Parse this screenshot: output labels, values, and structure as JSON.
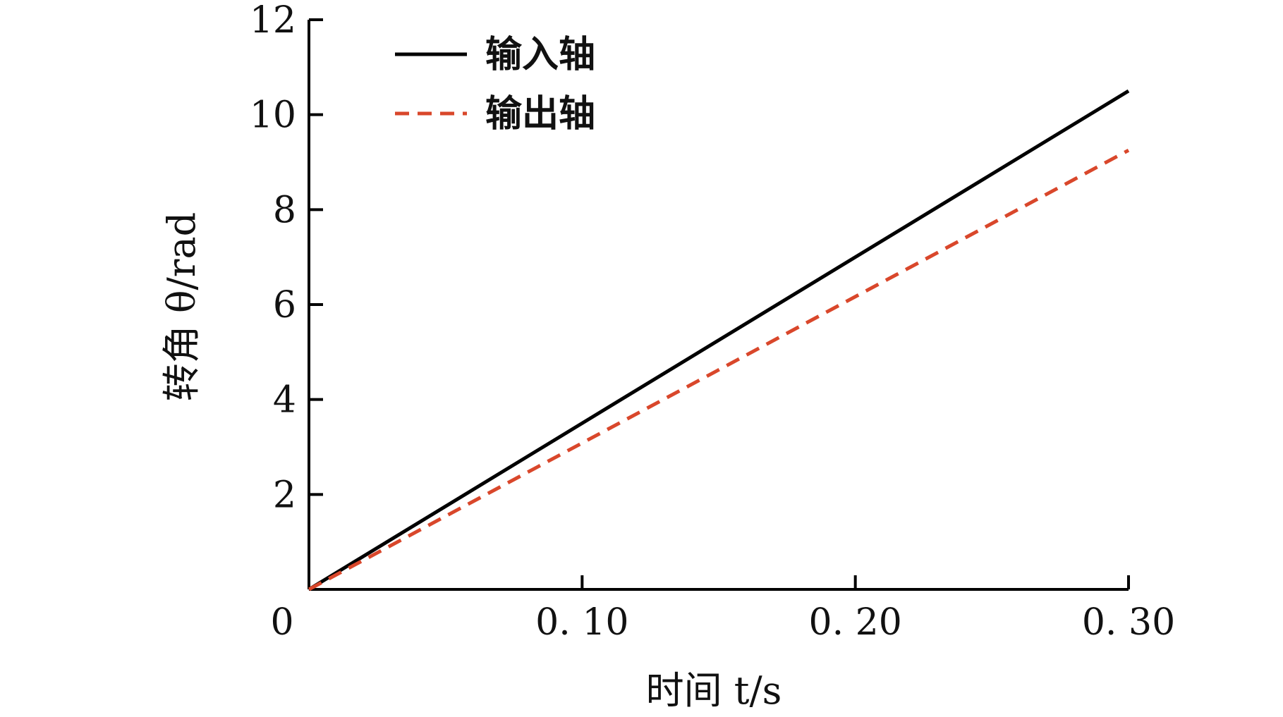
{
  "chart_data": {
    "type": "line",
    "xlabel": "时间 t/s",
    "ylabel": "转角 θ/rad",
    "xlim": [
      0,
      0.3
    ],
    "ylim": [
      0,
      12
    ],
    "x_ticks": [
      0,
      0.1,
      0.2,
      0.3
    ],
    "x_tick_labels": [
      "0",
      "0. 10",
      "0. 20",
      "0. 30"
    ],
    "y_ticks": [
      2,
      4,
      6,
      8,
      10,
      12
    ],
    "y_tick_labels": [
      "2",
      "4",
      "6",
      "8",
      "10",
      "12"
    ],
    "grid": false,
    "legend_position": "top-left",
    "series": [
      {
        "name": "输入轴",
        "style": "solid",
        "color": "#000000",
        "x": [
          0,
          0.3
        ],
        "y": [
          0,
          10.5
        ]
      },
      {
        "name": "输出轴",
        "style": "dashed",
        "color": "#d9472b",
        "x": [
          0,
          0.3
        ],
        "y": [
          0,
          9.25
        ]
      }
    ]
  }
}
